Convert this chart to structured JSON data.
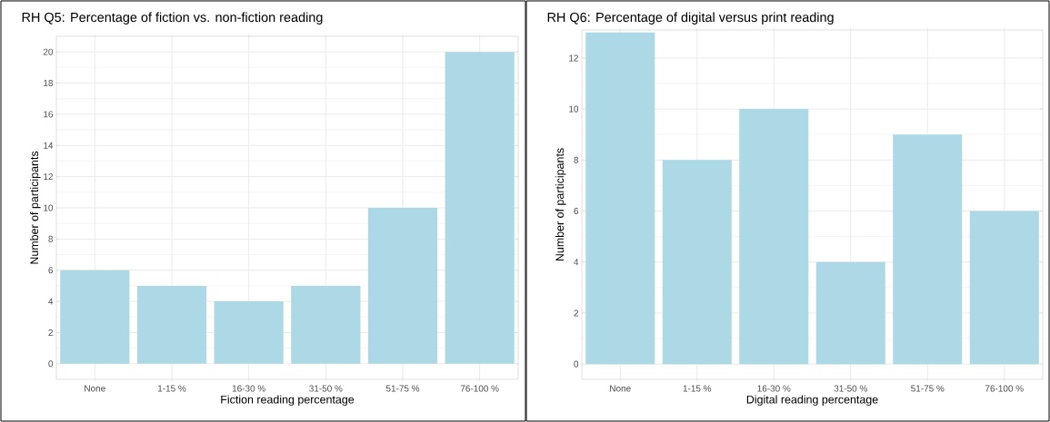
{
  "chart_data": [
    {
      "type": "bar",
      "title": "RH Q5: Percentage of fiction vs. non-fiction reading",
      "xlabel": "Fiction reading percentage",
      "ylabel": "Number of participants",
      "categories": [
        "None",
        "1-15 %",
        "16-30 %",
        "31-50 %",
        "51-75 %",
        "76-100 %"
      ],
      "values": [
        6,
        5,
        4,
        5,
        10,
        20
      ],
      "color": "#add8e6",
      "ylim": [
        -1,
        21
      ],
      "yticks": [
        0,
        2,
        4,
        6,
        8,
        10,
        12,
        14,
        16,
        18,
        20
      ],
      "grid": true
    },
    {
      "type": "bar",
      "title": "RH Q6: Percentage of digital versus print reading",
      "xlabel": "Digital reading percentage",
      "ylabel": "Number of participants",
      "categories": [
        "None",
        "1-15 %",
        "16-30 %",
        "31-50 %",
        "51-75 %",
        "76-100 %"
      ],
      "values": [
        13,
        8,
        10,
        4,
        9,
        6
      ],
      "color": "#add8e6",
      "ylim": [
        -0.6,
        13.1
      ],
      "yticks": [
        0,
        2,
        4,
        6,
        8,
        10,
        12
      ],
      "grid": true
    }
  ]
}
